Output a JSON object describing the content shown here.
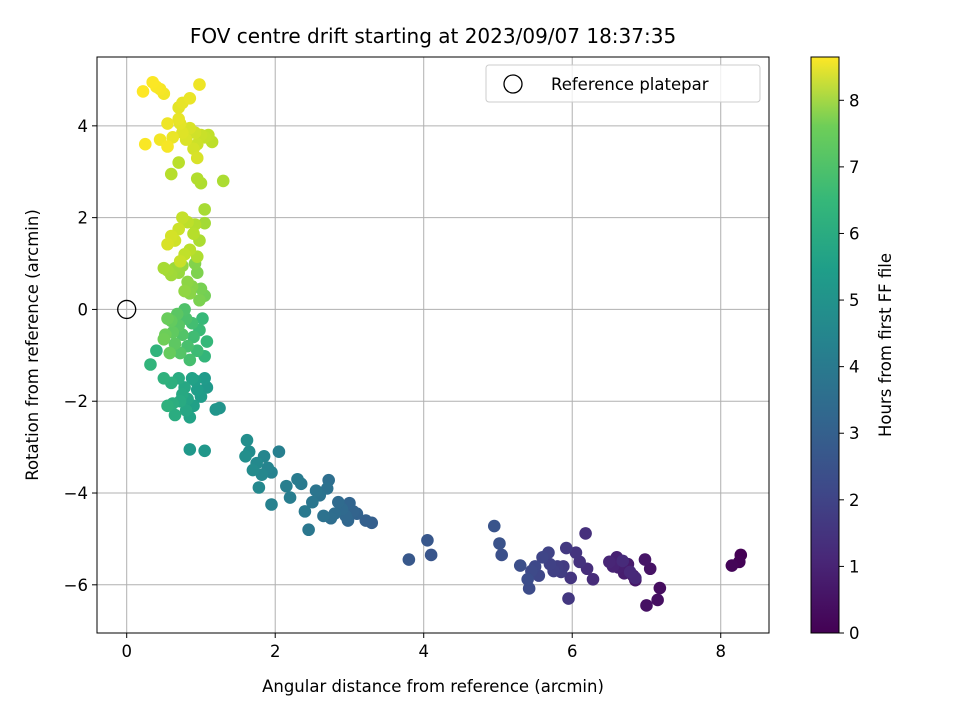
{
  "chart_data": {
    "type": "scatter",
    "title": "FOV centre drift starting at 2023/09/07 18:37:35",
    "xlabel": "Angular distance from reference (arcmin)",
    "ylabel": "Rotation from reference (arcmin)",
    "xlim": [
      -0.4,
      8.65
    ],
    "ylim": [
      -7.05,
      5.5
    ],
    "xticks": [
      0,
      2,
      4,
      6,
      8
    ],
    "yticks": [
      -6,
      -4,
      -2,
      0,
      2,
      4
    ],
    "grid": true,
    "legend": {
      "position": "top-right",
      "entries": [
        "Reference platepar"
      ]
    },
    "reference_point": {
      "x": 0,
      "y": 0
    },
    "colorbar": {
      "label": "Hours from first FF file",
      "colormap": "viridis",
      "range": [
        0,
        8.65
      ],
      "ticks": [
        0,
        1,
        2,
        3,
        4,
        5,
        6,
        7,
        8
      ]
    },
    "points": [
      [
        8.27,
        -5.35,
        0.0
      ],
      [
        8.25,
        -5.5,
        0.05
      ],
      [
        8.15,
        -5.58,
        0.1
      ],
      [
        7.18,
        -6.07,
        0.3
      ],
      [
        7.15,
        -6.33,
        0.35
      ],
      [
        7.0,
        -6.45,
        0.4
      ],
      [
        7.05,
        -5.65,
        0.45
      ],
      [
        6.98,
        -5.45,
        0.5
      ],
      [
        6.85,
        -5.9,
        0.55
      ],
      [
        6.82,
        -5.8,
        0.6
      ],
      [
        6.75,
        -5.55,
        0.65
      ],
      [
        6.7,
        -5.75,
        0.7
      ],
      [
        6.62,
        -5.62,
        0.75
      ],
      [
        6.6,
        -5.4,
        0.8
      ],
      [
        6.55,
        -5.6,
        0.85
      ],
      [
        6.5,
        -5.5,
        0.9
      ],
      [
        6.85,
        -5.85,
        0.95
      ],
      [
        6.78,
        -5.72,
        1.0
      ],
      [
        6.68,
        -5.48,
        1.05
      ],
      [
        6.28,
        -5.88,
        1.1
      ],
      [
        6.2,
        -5.65,
        1.15
      ],
      [
        6.18,
        -4.88,
        1.2
      ],
      [
        6.1,
        -5.5,
        1.25
      ],
      [
        6.05,
        -5.3,
        1.3
      ],
      [
        5.98,
        -5.85,
        1.35
      ],
      [
        5.95,
        -6.3,
        1.4
      ],
      [
        5.92,
        -5.2,
        1.45
      ],
      [
        5.88,
        -5.6,
        1.5
      ],
      [
        5.85,
        -5.72,
        1.55
      ],
      [
        5.8,
        -5.6,
        1.6
      ],
      [
        5.75,
        -5.7,
        1.65
      ],
      [
        5.7,
        -5.55,
        1.7
      ],
      [
        5.68,
        -5.3,
        1.75
      ],
      [
        5.6,
        -5.4,
        1.8
      ],
      [
        5.55,
        -5.8,
        1.85
      ],
      [
        5.5,
        -5.6,
        1.9
      ],
      [
        5.45,
        -5.7,
        1.95
      ],
      [
        5.42,
        -6.08,
        2.0
      ],
      [
        5.4,
        -5.88,
        2.05
      ],
      [
        5.3,
        -5.58,
        2.1
      ],
      [
        5.05,
        -5.35,
        2.15
      ],
      [
        5.02,
        -5.1,
        2.2
      ],
      [
        4.95,
        -4.72,
        2.25
      ],
      [
        4.1,
        -5.35,
        2.3
      ],
      [
        4.05,
        -5.03,
        2.35
      ],
      [
        3.8,
        -5.45,
        2.4
      ],
      [
        3.3,
        -4.65,
        2.6
      ],
      [
        3.22,
        -4.6,
        2.65
      ],
      [
        3.1,
        -4.45,
        2.7
      ],
      [
        3.05,
        -4.4,
        2.75
      ],
      [
        3.0,
        -4.22,
        2.8
      ],
      [
        2.98,
        -4.6,
        2.85
      ],
      [
        2.95,
        -4.5,
        2.9
      ],
      [
        2.9,
        -4.35,
        2.95
      ],
      [
        2.85,
        -4.2,
        3.0
      ],
      [
        2.8,
        -4.45,
        3.05
      ],
      [
        2.75,
        -4.55,
        3.1
      ],
      [
        2.72,
        -3.72,
        3.15
      ],
      [
        2.7,
        -3.9,
        3.2
      ],
      [
        2.65,
        -4.5,
        3.25
      ],
      [
        2.6,
        -4.05,
        3.3
      ],
      [
        2.55,
        -3.95,
        3.35
      ],
      [
        2.5,
        -4.2,
        3.4
      ],
      [
        2.45,
        -4.8,
        3.45
      ],
      [
        2.4,
        -4.4,
        3.5
      ],
      [
        2.35,
        -3.8,
        3.55
      ],
      [
        2.3,
        -3.7,
        3.6
      ],
      [
        2.2,
        -4.1,
        3.65
      ],
      [
        2.15,
        -3.85,
        3.7
      ],
      [
        2.05,
        -3.1,
        3.75
      ],
      [
        1.95,
        -4.25,
        3.8
      ],
      [
        1.95,
        -3.55,
        3.85
      ],
      [
        1.9,
        -3.45,
        3.9
      ],
      [
        1.85,
        -3.2,
        3.95
      ],
      [
        1.82,
        -3.6,
        4.0
      ],
      [
        1.78,
        -3.88,
        4.05
      ],
      [
        1.75,
        -3.35,
        4.1
      ],
      [
        1.7,
        -3.5,
        4.15
      ],
      [
        1.65,
        -3.1,
        4.2
      ],
      [
        1.62,
        -2.85,
        4.25
      ],
      [
        1.6,
        -3.2,
        4.3
      ],
      [
        1.25,
        -2.15,
        4.45
      ],
      [
        1.2,
        -2.18,
        4.5
      ],
      [
        1.05,
        -3.08,
        4.55
      ],
      [
        0.85,
        -3.05,
        4.6
      ],
      [
        1.08,
        -1.7,
        4.65
      ],
      [
        1.05,
        -1.5,
        4.7
      ],
      [
        1.0,
        -1.9,
        4.75
      ],
      [
        0.95,
        -1.75,
        4.8
      ],
      [
        0.92,
        -1.55,
        4.85
      ],
      [
        0.9,
        -2.1,
        4.9
      ],
      [
        0.88,
        -1.5,
        4.95
      ],
      [
        0.85,
        -2.35,
        5.0
      ],
      [
        0.82,
        -1.95,
        5.05
      ],
      [
        0.8,
        -2.2,
        5.1
      ],
      [
        0.78,
        -1.7,
        5.15
      ],
      [
        0.75,
        -1.85,
        5.2
      ],
      [
        0.72,
        -2.0,
        5.25
      ],
      [
        0.7,
        -1.5,
        5.3
      ],
      [
        0.65,
        -2.3,
        5.35
      ],
      [
        0.62,
        -2.05,
        5.4
      ],
      [
        0.6,
        -1.6,
        5.45
      ],
      [
        0.55,
        -2.1,
        5.5
      ],
      [
        0.5,
        -1.5,
        5.55
      ],
      [
        0.4,
        -0.9,
        5.6
      ],
      [
        0.32,
        -1.2,
        5.65
      ],
      [
        1.05,
        -1.02,
        5.7
      ],
      [
        1.08,
        -0.7,
        5.75
      ],
      [
        1.02,
        -0.2,
        5.8
      ],
      [
        0.98,
        -0.45,
        5.85
      ],
      [
        0.95,
        -0.9,
        5.9
      ],
      [
        0.9,
        -0.6,
        5.95
      ],
      [
        0.88,
        -0.3,
        6.0
      ],
      [
        0.85,
        -1.1,
        6.05
      ],
      [
        0.82,
        -0.8,
        6.1
      ],
      [
        0.8,
        -0.2,
        6.15
      ],
      [
        0.78,
        0.0,
        6.2
      ],
      [
        0.75,
        -0.55,
        6.25
      ],
      [
        0.72,
        -0.95,
        6.3
      ],
      [
        0.7,
        -0.35,
        6.35
      ],
      [
        0.68,
        -0.1,
        6.4
      ],
      [
        0.65,
        -0.75,
        6.45
      ],
      [
        0.62,
        -0.5,
        6.5
      ],
      [
        0.6,
        -0.25,
        6.55
      ],
      [
        0.58,
        -0.95,
        6.6
      ],
      [
        0.55,
        -0.2,
        6.65
      ],
      [
        0.52,
        -0.55,
        6.7
      ],
      [
        0.5,
        -0.65,
        6.75
      ],
      [
        1.05,
        0.3,
        6.8
      ],
      [
        1.0,
        0.45,
        6.85
      ],
      [
        0.98,
        0.2,
        6.9
      ],
      [
        0.95,
        0.8,
        6.95
      ],
      [
        0.92,
        1.0,
        7.0
      ],
      [
        0.88,
        0.5,
        7.05
      ],
      [
        0.85,
        0.35,
        7.1
      ],
      [
        0.82,
        0.6,
        7.15
      ],
      [
        0.78,
        0.4,
        7.2
      ],
      [
        0.75,
        0.95,
        7.25
      ],
      [
        0.7,
        0.8,
        7.3
      ],
      [
        0.65,
        0.9,
        7.35
      ],
      [
        0.6,
        0.75,
        7.4
      ],
      [
        0.55,
        0.85,
        7.45
      ],
      [
        0.5,
        0.9,
        7.5
      ],
      [
        1.05,
        1.88,
        7.45
      ],
      [
        1.05,
        2.18,
        7.5
      ],
      [
        0.98,
        1.5,
        7.55
      ],
      [
        0.95,
        1.15,
        7.6
      ],
      [
        0.92,
        1.85,
        7.65
      ],
      [
        0.9,
        1.65,
        7.7
      ],
      [
        0.85,
        1.3,
        7.75
      ],
      [
        0.82,
        1.9,
        7.8
      ],
      [
        0.78,
        1.2,
        7.85
      ],
      [
        0.75,
        2.0,
        7.9
      ],
      [
        0.72,
        1.05,
        7.95
      ],
      [
        0.7,
        1.75,
        8.0
      ],
      [
        0.65,
        1.5,
        8.05
      ],
      [
        0.6,
        1.6,
        8.1
      ],
      [
        0.55,
        1.42,
        8.15
      ],
      [
        1.3,
        2.8,
        7.55
      ],
      [
        1.0,
        2.75,
        7.6
      ],
      [
        0.95,
        2.85,
        7.65
      ],
      [
        0.6,
        2.95,
        7.7
      ],
      [
        0.7,
        3.2,
        7.75
      ],
      [
        1.15,
        3.65,
        7.8
      ],
      [
        1.1,
        3.8,
        7.85
      ],
      [
        1.05,
        3.75,
        7.9
      ],
      [
        1.0,
        3.8,
        7.95
      ],
      [
        0.95,
        3.6,
        8.0
      ],
      [
        0.92,
        3.85,
        8.05
      ],
      [
        0.9,
        3.5,
        8.1
      ],
      [
        0.85,
        3.95,
        8.15
      ],
      [
        0.8,
        3.7,
        8.2
      ],
      [
        0.75,
        3.85,
        8.25
      ],
      [
        0.72,
        4.05,
        8.3
      ],
      [
        0.7,
        4.15,
        8.35
      ],
      [
        0.62,
        3.75,
        8.4
      ],
      [
        0.55,
        4.05,
        8.45
      ],
      [
        0.45,
        3.7,
        8.5
      ],
      [
        0.55,
        3.55,
        8.55
      ],
      [
        0.25,
        3.6,
        8.6
      ],
      [
        0.95,
        3.3,
        8.15
      ],
      [
        0.7,
        4.4,
        8.3
      ],
      [
        0.75,
        4.5,
        8.35
      ],
      [
        0.85,
        4.6,
        8.4
      ],
      [
        0.98,
        4.9,
        8.45
      ],
      [
        0.5,
        4.7,
        8.5
      ],
      [
        0.45,
        4.8,
        8.55
      ],
      [
        0.4,
        4.85,
        8.6
      ],
      [
        0.35,
        4.95,
        8.62
      ],
      [
        0.22,
        4.75,
        8.65
      ]
    ]
  }
}
